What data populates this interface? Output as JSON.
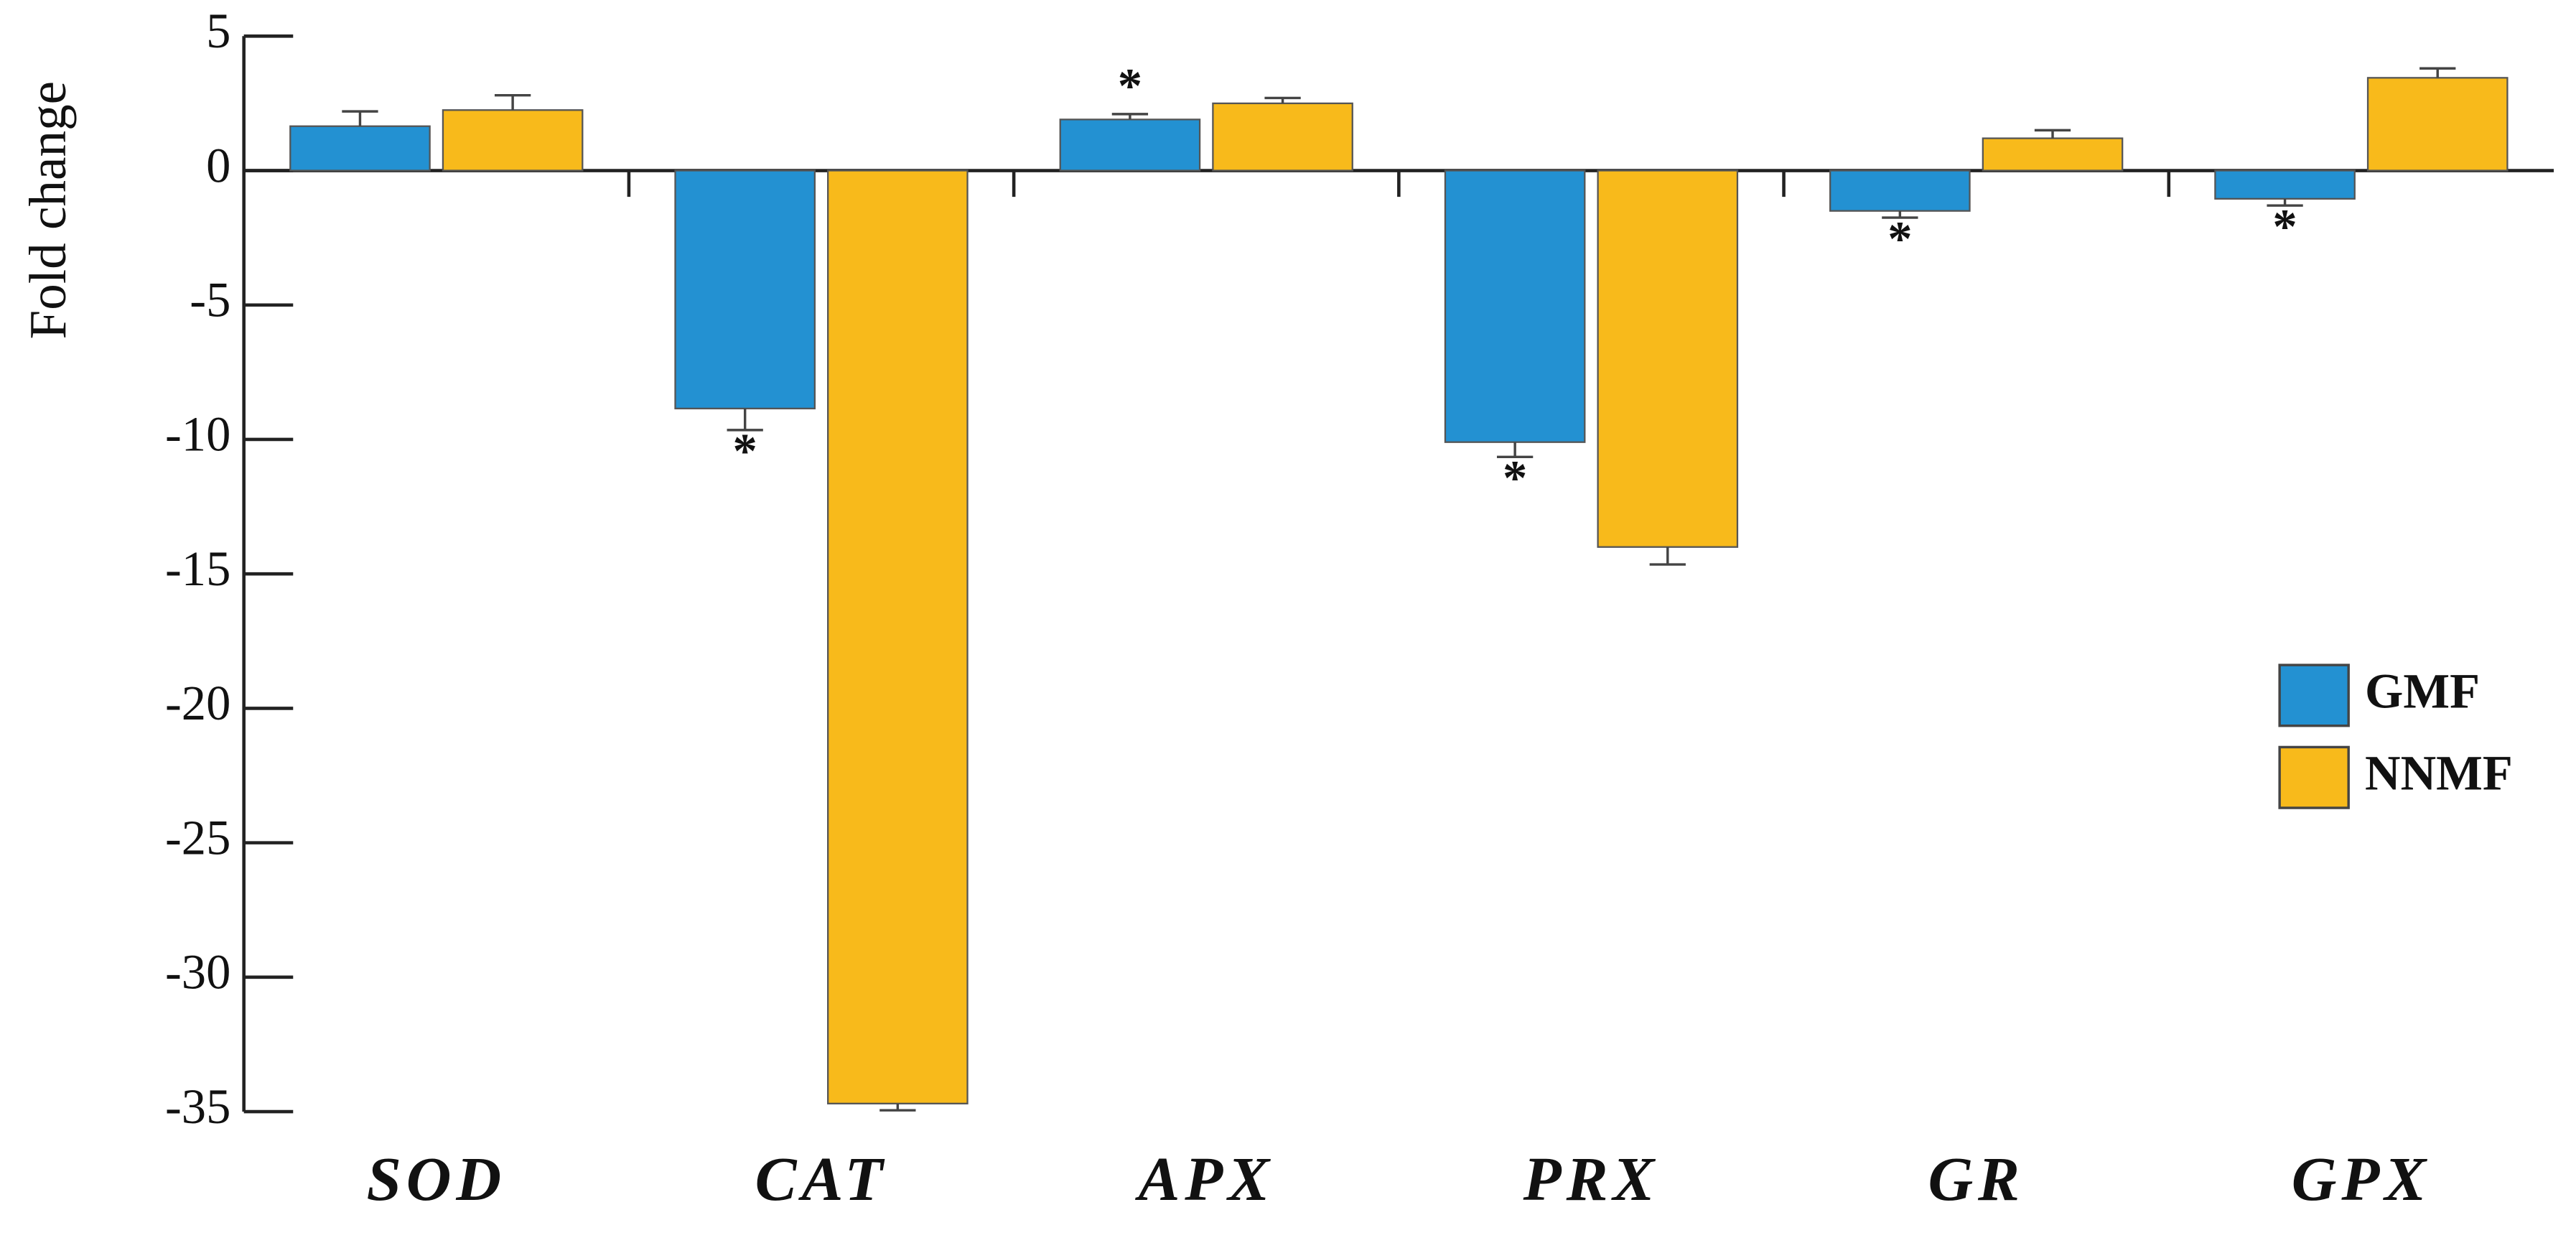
{
  "chart_data": {
    "type": "bar",
    "y_label": "Fold change",
    "categories": [
      "SOD",
      "CAT",
      "APX",
      "PRX",
      "GR",
      "GPX"
    ],
    "series": [
      {
        "name": "GMF",
        "color": "#2391d2",
        "values": [
          1.65,
          -8.85,
          1.9,
          -10.1,
          -1.5,
          -1.05
        ],
        "errors": [
          0.55,
          0.8,
          0.2,
          0.55,
          0.25,
          0.25
        ],
        "markers": [
          null,
          "*",
          "*",
          "*",
          "*",
          "*"
        ]
      },
      {
        "name": "NNMF",
        "color": "#f8ba1b",
        "values": [
          2.25,
          -34.7,
          2.5,
          -14.0,
          1.2,
          3.45
        ],
        "errors": [
          0.55,
          0.25,
          0.2,
          0.65,
          0.3,
          0.35
        ]
      }
    ],
    "ylim": [
      -35,
      5
    ],
    "yticks": [
      -35,
      -30,
      -25,
      -20,
      -15,
      -10,
      -5,
      0,
      5
    ],
    "legend": "right"
  }
}
